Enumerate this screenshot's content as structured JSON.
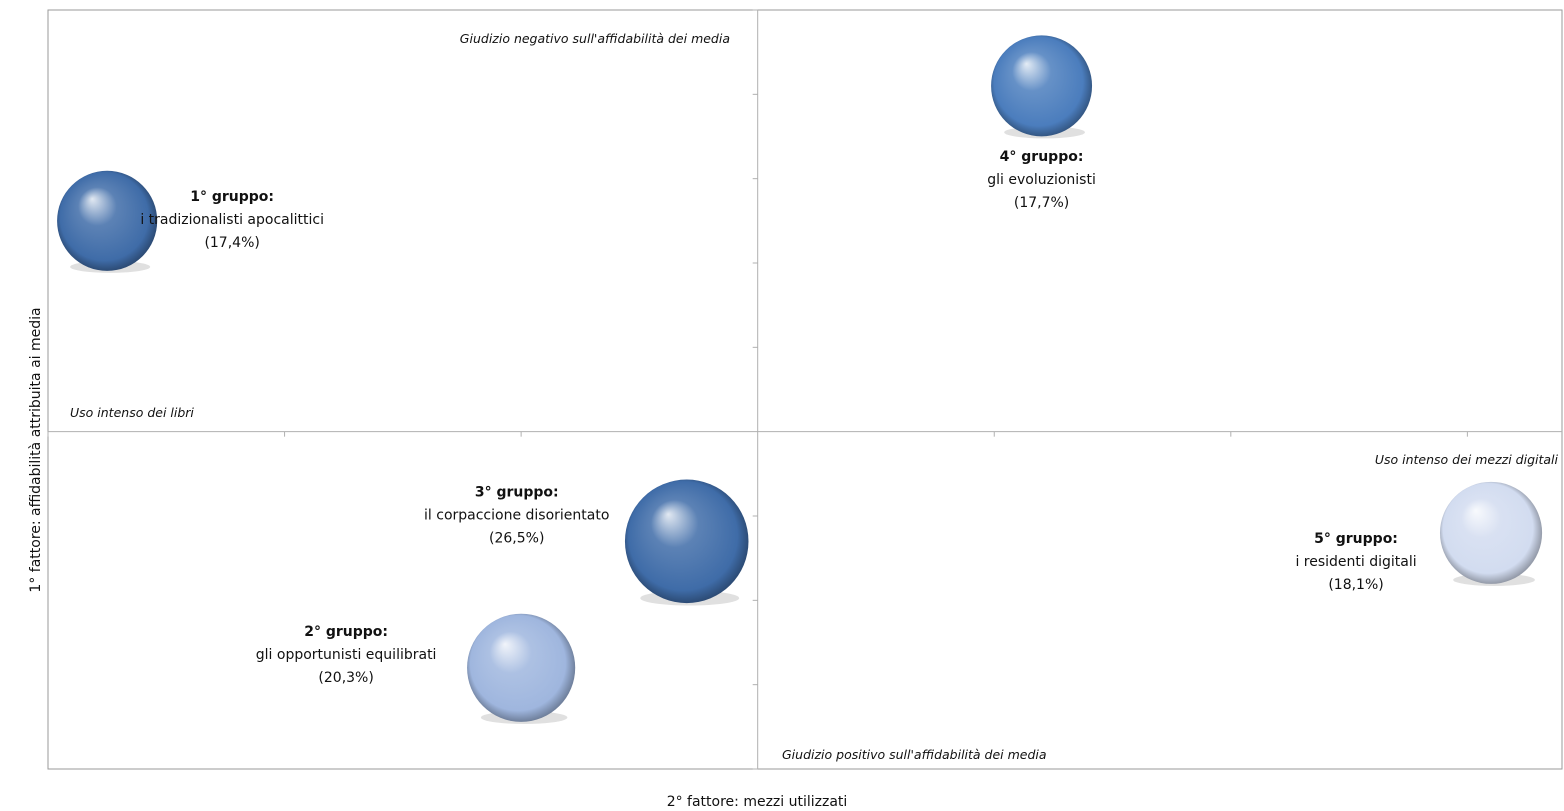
{
  "chart_data": {
    "type": "bubble",
    "xlabel": "2° fattore: mezzi utilizzati",
    "ylabel": "1° fattore: affidabilità attribuita ai media",
    "xlim": [
      -3,
      3.4
    ],
    "ylim": [
      -4,
      5
    ],
    "grid": false,
    "annotations": {
      "top": "Giudizio negativo sull'affidabilità dei media",
      "bottom": "Giudizio positivo sull'affidabilità dei media",
      "left": "Uso intenso dei libri",
      "right": "Uso intenso dei mezzi digitali"
    },
    "groups": [
      {
        "title": "1° gruppo:",
        "name": "i tradizionalisti apocalittici",
        "pct": "(17,4%)",
        "x": -2.75,
        "y": 2.5,
        "size": 17.4,
        "color": "#3f6ca8"
      },
      {
        "title": "4° gruppo:",
        "name": "gli evoluzionisti",
        "pct": "(17,7%)",
        "x": 1.2,
        "y": 4.1,
        "size": 17.7,
        "color": "#4b7dbd"
      },
      {
        "title": "3° gruppo:",
        "name": "il corpaccione disorientato",
        "pct": "(26,5%)",
        "x": -0.3,
        "y": -1.3,
        "size": 26.5,
        "color": "#3f6ca8"
      },
      {
        "title": "2° gruppo:",
        "name": "gli opportunisti equilibrati",
        "pct": "(20,3%)",
        "x": -1.0,
        "y": -2.8,
        "size": 20.3,
        "color": "#9fb6de"
      },
      {
        "title": "5° gruppo:",
        "name": "i residenti digitali",
        "pct": "(18,1%)",
        "x": 3.1,
        "y": -1.2,
        "size": 18.1,
        "color": "#d2dcf0"
      }
    ]
  }
}
